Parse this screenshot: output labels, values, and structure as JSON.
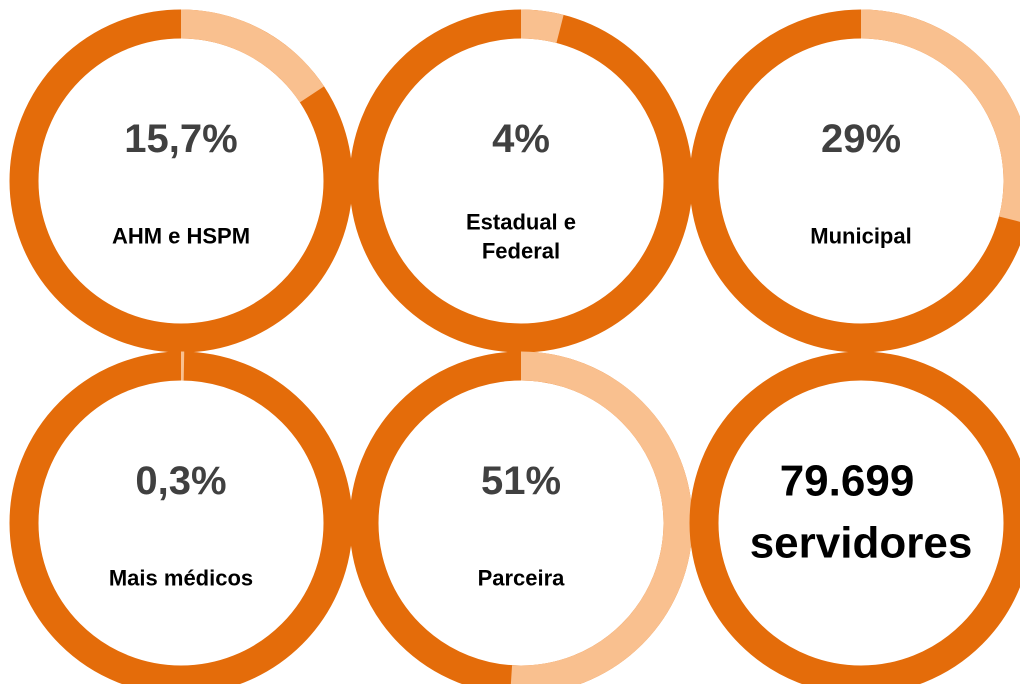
{
  "chart_data": [
    {
      "type": "pie",
      "categories": [
        "AHM e HSPM"
      ],
      "values": [
        15.7
      ],
      "value_labels": [
        "15,7%"
      ],
      "color": "#f9c08f",
      "track_color": "#e46c0a"
    },
    {
      "type": "pie",
      "categories": [
        "Estadual e\nFederal"
      ],
      "values": [
        4
      ],
      "value_labels": [
        "4%"
      ],
      "color": "#f9c08f",
      "track_color": "#e46c0a"
    },
    {
      "type": "pie",
      "categories": [
        "Municipal"
      ],
      "values": [
        29
      ],
      "value_labels": [
        "29%"
      ],
      "color": "#f9c08f",
      "track_color": "#e46c0a"
    },
    {
      "type": "pie",
      "categories": [
        "Mais médicos"
      ],
      "values": [
        0.3
      ],
      "value_labels": [
        "0,3%"
      ],
      "color": "#f9c08f",
      "track_color": "#e46c0a"
    },
    {
      "type": "pie",
      "categories": [
        "Parceira"
      ],
      "values": [
        51
      ],
      "value_labels": [
        "51%"
      ],
      "color": "#f9c08f",
      "track_color": "#e46c0a"
    }
  ],
  "total": {
    "label": "79.699",
    "unit": "servidores",
    "color": "#e46c0a"
  }
}
